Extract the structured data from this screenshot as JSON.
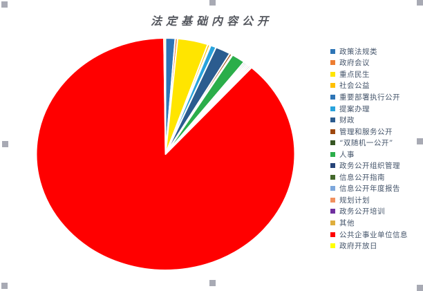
{
  "title": "法定基础内容公开",
  "ui": {
    "background_color": "#FFFFFF",
    "selection_handle_color": "#A8AAB4",
    "title_color": "#54575E",
    "legend_text_color": "#44546A",
    "slice_border_color": "#FFFFFF"
  },
  "chart_data": {
    "type": "pie",
    "title": "法定基础内容公开",
    "legend_position": "right",
    "values_unit": "percent_estimated_from_angles",
    "slices": [
      {
        "label": "政策法规类",
        "color": "#2E75B6",
        "value": 1.2
      },
      {
        "label": "政府会议",
        "color": "#ED7D31",
        "value": 0.3
      },
      {
        "label": "重点民生",
        "color": "#FFE500",
        "value": 3.8
      },
      {
        "label": "社会公益",
        "color": "#FFC000",
        "value": 0.3
      },
      {
        "label": "重要部署执行公开",
        "color": "#2E75B6",
        "value": 0.1
      },
      {
        "label": "提案办理",
        "color": "#29A3DC",
        "value": 0.7
      },
      {
        "label": "财政",
        "color": "#2B5C8F",
        "value": 1.9
      },
      {
        "label": "管理和服务公开",
        "color": "#9E480E",
        "value": 0.3
      },
      {
        "label": "“双随机一公开”",
        "color": "#375623",
        "value": 0.1
      },
      {
        "label": "人事",
        "color": "#2BAE4A",
        "value": 1.7
      },
      {
        "label": "政务公开组织管理",
        "color": "#264478",
        "value": 0.2
      },
      {
        "label": "信息公开指南",
        "color": "#44682C",
        "value": 0.2
      },
      {
        "label": "信息公开年度报告",
        "color": "#7DA7DC",
        "value": 0.2
      },
      {
        "label": "规划计划",
        "color": "#F1915F",
        "value": 0.2
      },
      {
        "label": "政务公开培训",
        "color": "#7030A0",
        "value": 0.2
      },
      {
        "label": "其他",
        "color": "#DFAE3C",
        "value": 0.2
      },
      {
        "label": "公共企事业单位信息",
        "color": "#FF0000",
        "value": 88.2
      },
      {
        "label": "政府开放日",
        "color": "#FFFF00",
        "value": 0.2
      }
    ]
  }
}
